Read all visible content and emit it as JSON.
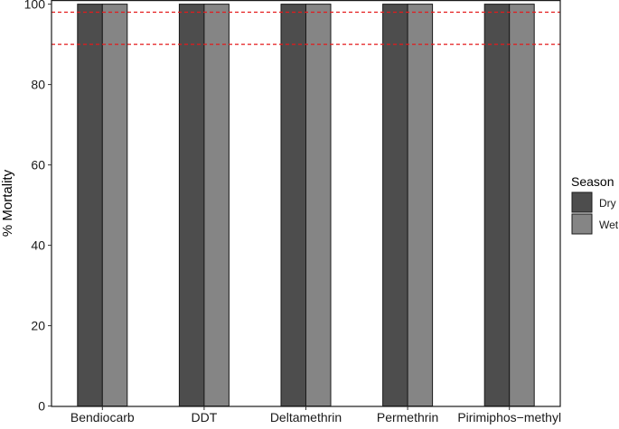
{
  "chart_data": {
    "type": "bar",
    "title": "",
    "xlabel": "",
    "ylabel": "% Mortality",
    "ylim": [
      0,
      100
    ],
    "yticks": [
      0,
      20,
      40,
      60,
      80,
      100
    ],
    "grid": false,
    "categories": [
      "Bendiocarb",
      "DDT",
      "Deltamethrin",
      "Permethrin",
      "Pirimiphos−methyl"
    ],
    "series": [
      {
        "name": "Dry",
        "color": "#4d4d4d",
        "values": [
          100,
          100,
          100,
          100,
          100
        ]
      },
      {
        "name": "Wet",
        "color": "#858585",
        "values": [
          100,
          100,
          100,
          100,
          100
        ]
      }
    ],
    "reference_lines": [
      {
        "y": 98,
        "color": "#e41a1c",
        "style": "dashed"
      },
      {
        "y": 90,
        "color": "#e41a1c",
        "style": "dashed"
      }
    ],
    "legend": {
      "title": "Season",
      "placement": "right"
    }
  }
}
